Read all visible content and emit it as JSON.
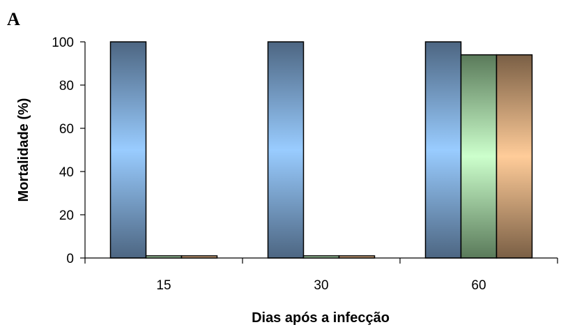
{
  "chart_data": {
    "type": "bar",
    "panel_label": "A",
    "categories": [
      "15",
      "30",
      "60"
    ],
    "series": [
      {
        "color_top": "#4d6682",
        "color_mid": "#99ccff",
        "values": [
          100,
          100,
          100
        ]
      },
      {
        "color_top": "#5a7a5a",
        "color_mid": "#ccffcc",
        "values": [
          1,
          1,
          94
        ]
      },
      {
        "color_top": "#7a5f45",
        "color_mid": "#ffcc99",
        "values": [
          1,
          1,
          94
        ]
      }
    ],
    "xlabel": "Dias após a infecção",
    "ylabel": "Mortalidade (%)",
    "ylim": [
      0,
      100
    ],
    "yticks": [
      0,
      20,
      40,
      60,
      80,
      100
    ],
    "grid": false,
    "legend": "none"
  }
}
